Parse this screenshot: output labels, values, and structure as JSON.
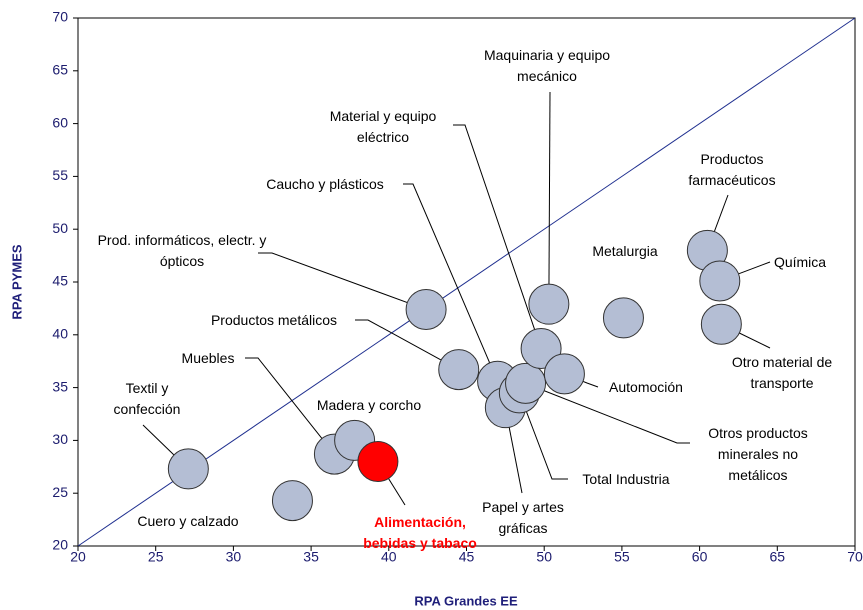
{
  "chart_data": {
    "type": "scatter",
    "xlabel": "RPA Grandes EE",
    "ylabel": "RPA PYMES",
    "xlim": [
      20,
      70
    ],
    "ylim": [
      20,
      70
    ],
    "xticks": [
      20,
      25,
      30,
      35,
      40,
      45,
      50,
      55,
      60,
      65,
      70
    ],
    "yticks": [
      20,
      25,
      30,
      35,
      40,
      45,
      50,
      55,
      60,
      65,
      70
    ],
    "color": "#b4bed4",
    "labels": [
      "Textil y confección",
      "Cuero y calzado",
      "Muebles",
      "Madera y corcho",
      "Alimentación, bebidas y tabaco",
      "Prod. informáticos, electr. y ópticos",
      "Productos metálicos",
      "Caucho y plásticos",
      "Papel y artes gráficas",
      "Total Industria",
      "Otros productos minerales no metálicos",
      "Material y equipo eléctrico",
      "Maquinaria y equipo mecánico",
      "Automoción",
      "Metalurgia",
      "Productos farmacéuticos",
      "Química",
      "Otro material de transporte"
    ],
    "x": [
      27.1,
      33.8,
      36.5,
      37.8,
      39.3,
      42.4,
      44.5,
      47.0,
      47.5,
      48.4,
      48.8,
      49.8,
      50.3,
      51.3,
      55.1,
      60.5,
      61.3,
      61.4
    ],
    "y": [
      27.3,
      24.3,
      28.7,
      30.0,
      28.0,
      42.4,
      36.7,
      35.6,
      33.1,
      34.5,
      35.4,
      38.7,
      42.9,
      36.3,
      41.6,
      48.0,
      45.1,
      41.0
    ],
    "colors": [
      "#b4bed4",
      "#b4bed4",
      "#b4bed4",
      "#b4bed4",
      "#ff0000",
      "#b4bed4",
      "#b4bed4",
      "#b4bed4",
      "#b4bed4",
      "#b4bed4",
      "#b4bed4",
      "#b4bed4",
      "#b4bed4",
      "#b4bed4",
      "#b4bed4",
      "#b4bed4",
      "#b4bed4",
      "#b4bed4"
    ],
    "label_colors": [
      "#000000",
      "#000000",
      "#000000",
      "#000000",
      "#ff0000",
      "#000000",
      "#000000",
      "#000000",
      "#000000",
      "#000000",
      "#000000",
      "#000000",
      "#000000",
      "#000000",
      "#000000",
      "#000000",
      "#000000",
      "#000000"
    ]
  }
}
